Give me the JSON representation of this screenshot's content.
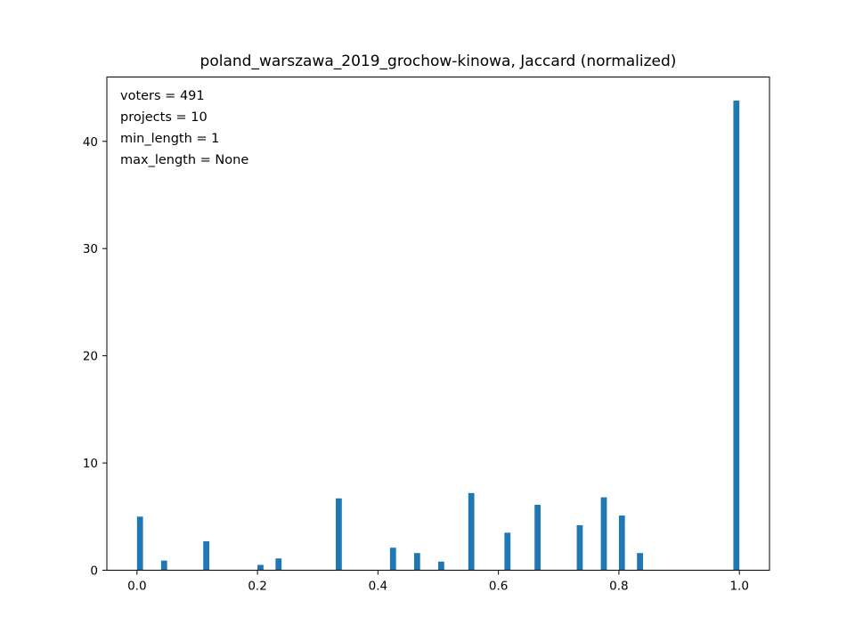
{
  "chart_data": {
    "type": "bar",
    "title": "poland_warszawa_2019_grochow-kinowa, Jaccard (normalized)",
    "xlabel": "",
    "ylabel": "",
    "xlim": [
      -0.05,
      1.05
    ],
    "ylim": [
      0,
      46
    ],
    "xticks": [
      0.0,
      0.2,
      0.4,
      0.6,
      0.8,
      1.0
    ],
    "xtick_labels": [
      "0.0",
      "0.2",
      "0.4",
      "0.6",
      "0.8",
      "1.0"
    ],
    "yticks": [
      0,
      10,
      20,
      30,
      40
    ],
    "ytick_labels": [
      "0",
      "10",
      "20",
      "30",
      "40"
    ],
    "grid": false,
    "bar_color": "#1f77b4",
    "bar_width": 0.01,
    "annotations": [
      "voters = 491",
      "projects = 10",
      "min_length = 1",
      "max_length = None"
    ],
    "x": [
      0.005,
      0.045,
      0.115,
      0.205,
      0.235,
      0.335,
      0.425,
      0.465,
      0.505,
      0.555,
      0.615,
      0.665,
      0.735,
      0.775,
      0.805,
      0.835,
      0.995
    ],
    "values": [
      5.0,
      0.9,
      2.7,
      0.5,
      1.1,
      6.7,
      2.1,
      1.6,
      0.8,
      7.2,
      3.5,
      6.1,
      4.2,
      6.8,
      5.1,
      1.6,
      43.8
    ]
  }
}
